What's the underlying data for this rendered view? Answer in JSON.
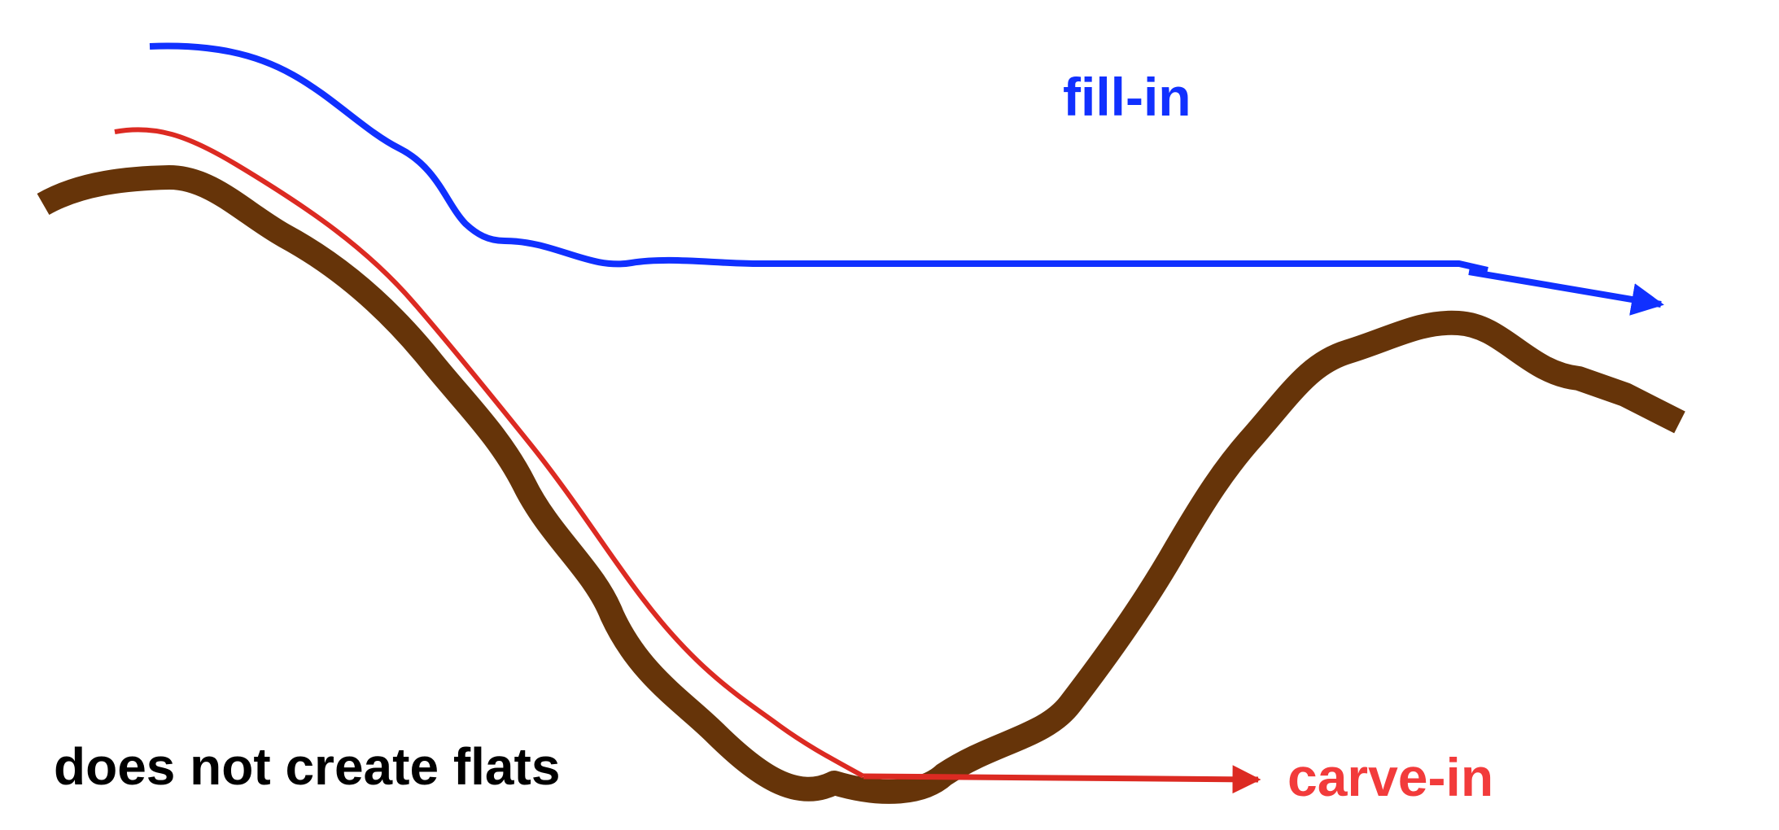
{
  "labels": {
    "fill_in": "fill-in",
    "carve_in": "carve-in",
    "no_flats": "does not create flats"
  },
  "colors": {
    "terrain": "#663409",
    "fill": "#1030ff",
    "carve": "#dc2a22",
    "carve_label": "#f23b3b",
    "text": "#000000",
    "background": "#ffffff"
  }
}
